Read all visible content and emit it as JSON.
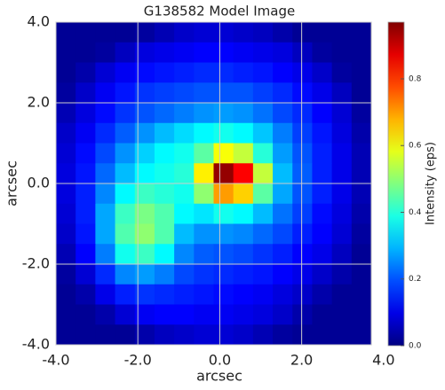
{
  "chart_data": {
    "type": "heatmap",
    "title": "G138582 Model Image",
    "xlabel": "arcsec",
    "ylabel": "arcsec",
    "colorbar_label": "Intensity (eps)",
    "xlim": [
      -4.0,
      3.7
    ],
    "ylim": [
      -4.0,
      4.0
    ],
    "zlim": [
      0,
      0.97
    ],
    "colormap": "jet",
    "grid": true,
    "xticks": [
      {
        "value": -4,
        "label": "-4.0"
      },
      {
        "value": -2,
        "label": "-2.0"
      },
      {
        "value": 0,
        "label": "0.0"
      },
      {
        "value": 2,
        "label": "2.0"
      },
      {
        "value": 4,
        "label": "4.0"
      }
    ],
    "yticks": [
      {
        "value": -4,
        "label": "-4.0"
      },
      {
        "value": -2,
        "label": "-2.0"
      },
      {
        "value": 0,
        "label": "0.0"
      },
      {
        "value": 2,
        "label": "2.0"
      },
      {
        "value": 4,
        "label": "4.0"
      }
    ],
    "cticks": [
      {
        "value": 0,
        "label": "0.0"
      },
      0.2,
      0.4,
      0.6,
      0.8
    ],
    "z": [
      [
        0.02,
        0.02,
        0.02,
        0.02,
        0.03,
        0.05,
        0.07,
        0.08,
        0.08,
        0.07,
        0.06,
        0.04,
        0.02,
        0.02,
        0.02,
        0.02
      ],
      [
        0.02,
        0.02,
        0.03,
        0.06,
        0.09,
        0.1,
        0.11,
        0.12,
        0.12,
        0.11,
        0.1,
        0.09,
        0.06,
        0.03,
        0.02,
        0.02
      ],
      [
        0.02,
        0.04,
        0.08,
        0.11,
        0.13,
        0.14,
        0.15,
        0.16,
        0.16,
        0.15,
        0.14,
        0.12,
        0.1,
        0.07,
        0.03,
        0.02
      ],
      [
        0.03,
        0.07,
        0.11,
        0.14,
        0.17,
        0.18,
        0.19,
        0.2,
        0.2,
        0.2,
        0.18,
        0.16,
        0.13,
        0.1,
        0.06,
        0.02
      ],
      [
        0.05,
        0.09,
        0.13,
        0.17,
        0.2,
        0.22,
        0.24,
        0.26,
        0.27,
        0.26,
        0.23,
        0.19,
        0.16,
        0.12,
        0.08,
        0.03
      ],
      [
        0.07,
        0.11,
        0.16,
        0.21,
        0.26,
        0.3,
        0.33,
        0.36,
        0.38,
        0.36,
        0.31,
        0.24,
        0.18,
        0.14,
        0.09,
        0.04
      ],
      [
        0.08,
        0.13,
        0.19,
        0.26,
        0.32,
        0.36,
        0.38,
        0.45,
        0.6,
        0.55,
        0.4,
        0.27,
        0.2,
        0.15,
        0.1,
        0.05
      ],
      [
        0.09,
        0.14,
        0.22,
        0.3,
        0.36,
        0.38,
        0.4,
        0.62,
        0.95,
        0.85,
        0.55,
        0.3,
        0.21,
        0.15,
        0.1,
        0.05
      ],
      [
        0.09,
        0.15,
        0.25,
        0.36,
        0.42,
        0.4,
        0.38,
        0.5,
        0.7,
        0.65,
        0.45,
        0.28,
        0.2,
        0.15,
        0.1,
        0.05
      ],
      [
        0.08,
        0.15,
        0.28,
        0.42,
        0.48,
        0.44,
        0.36,
        0.34,
        0.38,
        0.36,
        0.3,
        0.23,
        0.18,
        0.13,
        0.09,
        0.04
      ],
      [
        0.07,
        0.14,
        0.28,
        0.44,
        0.5,
        0.44,
        0.3,
        0.26,
        0.26,
        0.25,
        0.22,
        0.19,
        0.15,
        0.12,
        0.08,
        0.03
      ],
      [
        0.05,
        0.12,
        0.24,
        0.38,
        0.42,
        0.36,
        0.25,
        0.21,
        0.2,
        0.19,
        0.17,
        0.15,
        0.12,
        0.1,
        0.06,
        0.02
      ],
      [
        0.03,
        0.08,
        0.16,
        0.25,
        0.27,
        0.24,
        0.19,
        0.17,
        0.16,
        0.15,
        0.14,
        0.12,
        0.1,
        0.07,
        0.04,
        0.02
      ],
      [
        0.02,
        0.04,
        0.1,
        0.15,
        0.17,
        0.16,
        0.15,
        0.14,
        0.13,
        0.12,
        0.11,
        0.09,
        0.07,
        0.04,
        0.02,
        0.02
      ],
      [
        0.02,
        0.02,
        0.04,
        0.08,
        0.11,
        0.12,
        0.12,
        0.11,
        0.11,
        0.1,
        0.09,
        0.07,
        0.04,
        0.02,
        0.02,
        0.02
      ],
      [
        0.02,
        0.02,
        0.02,
        0.02,
        0.04,
        0.06,
        0.07,
        0.08,
        0.08,
        0.07,
        0.05,
        0.03,
        0.02,
        0.02,
        0.02,
        0.02
      ]
    ]
  }
}
